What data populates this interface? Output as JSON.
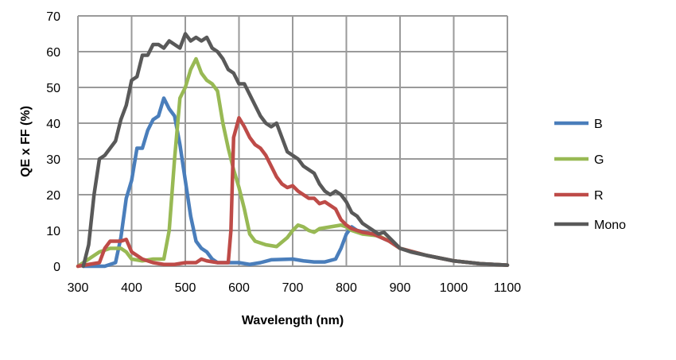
{
  "chart_data": {
    "type": "line",
    "title": "",
    "xlabel": "Wavelength (nm)",
    "ylabel": "QE x FF (%)",
    "xlim": [
      300,
      1100
    ],
    "ylim": [
      0,
      70
    ],
    "xticks": [
      300,
      400,
      500,
      600,
      700,
      800,
      900,
      1000,
      1100
    ],
    "yticks": [
      0,
      10,
      20,
      30,
      40,
      50,
      60,
      70
    ],
    "grid": true,
    "legend": "right",
    "series": [
      {
        "name": "B",
        "color": "#4a7ebb",
        "points": [
          [
            310,
            0
          ],
          [
            350,
            0
          ],
          [
            370,
            1
          ],
          [
            380,
            8
          ],
          [
            390,
            19
          ],
          [
            400,
            24
          ],
          [
            410,
            33
          ],
          [
            420,
            33
          ],
          [
            430,
            38
          ],
          [
            440,
            41
          ],
          [
            450,
            42
          ],
          [
            460,
            47
          ],
          [
            470,
            44
          ],
          [
            480,
            42
          ],
          [
            490,
            34
          ],
          [
            500,
            24
          ],
          [
            510,
            14
          ],
          [
            520,
            7
          ],
          [
            530,
            5
          ],
          [
            540,
            4
          ],
          [
            550,
            2
          ],
          [
            560,
            1
          ],
          [
            600,
            1
          ],
          [
            620,
            0.5
          ],
          [
            640,
            1
          ],
          [
            660,
            1.8
          ],
          [
            700,
            2
          ],
          [
            720,
            1.5
          ],
          [
            740,
            1.2
          ],
          [
            760,
            1.2
          ],
          [
            780,
            2
          ],
          [
            790,
            5
          ],
          [
            800,
            9
          ],
          [
            810,
            11
          ],
          [
            820,
            10
          ],
          [
            850,
            9
          ],
          [
            880,
            7
          ],
          [
            900,
            5
          ],
          [
            950,
            3
          ],
          [
            1000,
            1.5
          ],
          [
            1050,
            0.7
          ],
          [
            1100,
            0.3
          ]
        ]
      },
      {
        "name": "G",
        "color": "#98b954",
        "points": [
          [
            300,
            0
          ],
          [
            320,
            2
          ],
          [
            340,
            4
          ],
          [
            360,
            5
          ],
          [
            380,
            5
          ],
          [
            390,
            4
          ],
          [
            400,
            2
          ],
          [
            420,
            1.5
          ],
          [
            440,
            2
          ],
          [
            460,
            2
          ],
          [
            470,
            10
          ],
          [
            480,
            30
          ],
          [
            490,
            47
          ],
          [
            500,
            50
          ],
          [
            510,
            55
          ],
          [
            520,
            58
          ],
          [
            530,
            54
          ],
          [
            540,
            52
          ],
          [
            550,
            51
          ],
          [
            560,
            49
          ],
          [
            570,
            40
          ],
          [
            580,
            33
          ],
          [
            590,
            27
          ],
          [
            600,
            22
          ],
          [
            610,
            16
          ],
          [
            620,
            9
          ],
          [
            630,
            7
          ],
          [
            650,
            6
          ],
          [
            670,
            5.5
          ],
          [
            690,
            8
          ],
          [
            700,
            10
          ],
          [
            710,
            11.5
          ],
          [
            720,
            11
          ],
          [
            730,
            10
          ],
          [
            740,
            9.5
          ],
          [
            750,
            10.5
          ],
          [
            770,
            11
          ],
          [
            790,
            11.5
          ],
          [
            800,
            11
          ],
          [
            810,
            10
          ],
          [
            830,
            9
          ],
          [
            860,
            8.5
          ],
          [
            880,
            7
          ],
          [
            900,
            5
          ],
          [
            950,
            3
          ],
          [
            1000,
            1.5
          ],
          [
            1050,
            0.7
          ],
          [
            1100,
            0.3
          ]
        ]
      },
      {
        "name": "R",
        "color": "#be4b48",
        "points": [
          [
            300,
            0
          ],
          [
            320,
            0.5
          ],
          [
            340,
            1
          ],
          [
            350,
            5
          ],
          [
            360,
            7
          ],
          [
            380,
            7
          ],
          [
            390,
            7.5
          ],
          [
            400,
            4
          ],
          [
            420,
            2
          ],
          [
            440,
            1
          ],
          [
            460,
            0.5
          ],
          [
            480,
            0.5
          ],
          [
            500,
            1
          ],
          [
            520,
            1
          ],
          [
            530,
            2
          ],
          [
            540,
            1.5
          ],
          [
            560,
            1
          ],
          [
            580,
            1
          ],
          [
            585,
            10
          ],
          [
            590,
            36
          ],
          [
            600,
            41.5
          ],
          [
            610,
            39
          ],
          [
            620,
            36
          ],
          [
            630,
            34
          ],
          [
            640,
            33
          ],
          [
            650,
            31
          ],
          [
            660,
            28
          ],
          [
            670,
            25
          ],
          [
            680,
            23
          ],
          [
            690,
            22
          ],
          [
            700,
            22.5
          ],
          [
            710,
            21
          ],
          [
            720,
            20
          ],
          [
            730,
            19
          ],
          [
            740,
            19
          ],
          [
            750,
            17.5
          ],
          [
            760,
            18
          ],
          [
            770,
            17
          ],
          [
            780,
            16
          ],
          [
            790,
            13
          ],
          [
            800,
            11.5
          ],
          [
            810,
            10.5
          ],
          [
            830,
            9.5
          ],
          [
            850,
            9
          ],
          [
            880,
            7
          ],
          [
            900,
            5
          ],
          [
            950,
            3
          ],
          [
            1000,
            1.5
          ],
          [
            1050,
            0.7
          ],
          [
            1100,
            0.3
          ]
        ]
      },
      {
        "name": "Mono",
        "color": "#595959",
        "points": [
          [
            310,
            0
          ],
          [
            320,
            6
          ],
          [
            330,
            20
          ],
          [
            340,
            30
          ],
          [
            350,
            31
          ],
          [
            360,
            33
          ],
          [
            370,
            35
          ],
          [
            380,
            41
          ],
          [
            390,
            45
          ],
          [
            400,
            52
          ],
          [
            410,
            53
          ],
          [
            420,
            59
          ],
          [
            430,
            59
          ],
          [
            440,
            62
          ],
          [
            450,
            62
          ],
          [
            460,
            61
          ],
          [
            470,
            63
          ],
          [
            480,
            62
          ],
          [
            490,
            61
          ],
          [
            500,
            65
          ],
          [
            510,
            63
          ],
          [
            520,
            64
          ],
          [
            530,
            63
          ],
          [
            540,
            64
          ],
          [
            550,
            61
          ],
          [
            560,
            60
          ],
          [
            570,
            58
          ],
          [
            580,
            55
          ],
          [
            590,
            54
          ],
          [
            600,
            51
          ],
          [
            610,
            51
          ],
          [
            620,
            48
          ],
          [
            630,
            45
          ],
          [
            640,
            42
          ],
          [
            650,
            40
          ],
          [
            660,
            39
          ],
          [
            670,
            40
          ],
          [
            680,
            36
          ],
          [
            690,
            32
          ],
          [
            700,
            31
          ],
          [
            710,
            30
          ],
          [
            720,
            28
          ],
          [
            730,
            27
          ],
          [
            740,
            26
          ],
          [
            750,
            23
          ],
          [
            760,
            21
          ],
          [
            770,
            20
          ],
          [
            780,
            21
          ],
          [
            790,
            20
          ],
          [
            800,
            18
          ],
          [
            810,
            15
          ],
          [
            820,
            14
          ],
          [
            830,
            12
          ],
          [
            840,
            11
          ],
          [
            850,
            10
          ],
          [
            860,
            9
          ],
          [
            870,
            9.5
          ],
          [
            880,
            8
          ],
          [
            900,
            5
          ],
          [
            920,
            4
          ],
          [
            950,
            3
          ],
          [
            1000,
            1.5
          ],
          [
            1050,
            0.7
          ],
          [
            1100,
            0.3
          ]
        ]
      }
    ]
  }
}
